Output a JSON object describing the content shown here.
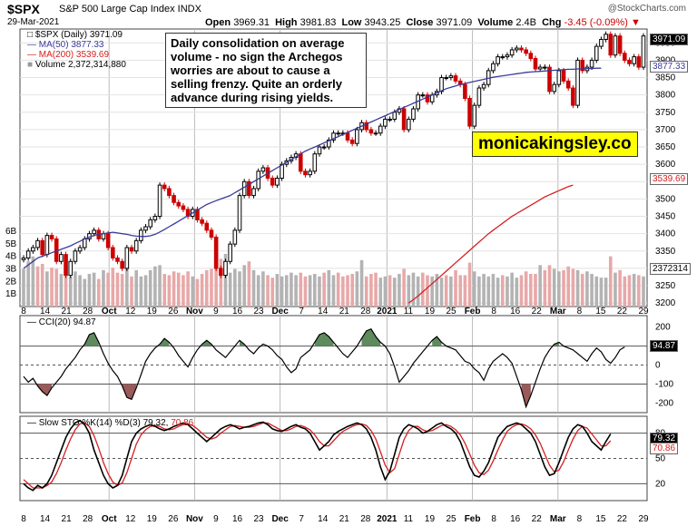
{
  "header": {
    "symbol": "$SPX",
    "name": "S&P 500 Large Cap Index INDX",
    "date": "29-Mar-2021",
    "open_label": "Open",
    "open": "3969.31",
    "high_label": "High",
    "high": "3981.83",
    "low_label": "Low",
    "low": "3943.25",
    "close_label": "Close",
    "close": "3971.09",
    "volume_label": "Volume",
    "volume": "2.4B",
    "chg_label": "Chg",
    "chg": "-3.45 (-0.09%)",
    "source": "@StockCharts.com"
  },
  "legend": {
    "price": "$SPX (Daily) 3971.09",
    "ma50": "MA(50) 3877.33",
    "ma200": "MA(200) 3539.69",
    "volume": "Volume 2,372,314,880",
    "cci": "CCI(20) 94.87",
    "sto_a": "Slow STO %K(14) %D(3) 79.32,",
    "sto_b": "70.86"
  },
  "annotation": "Daily consolidation on average volume - no sign the Archegos worries are about to cause a selling frenzy. Quite an orderly advance during rising yields.",
  "brand": "monicakingsley.co",
  "tags": {
    "price": "3971.09",
    "ma50": "3877.33",
    "ma200": "3539.69",
    "vol": "2372314",
    "cci": "94.87",
    "k": "79.32",
    "d": "70.86"
  },
  "colors": {
    "up": "#000000",
    "down": "#cc0000",
    "ma50": "#3a3a9a",
    "ma200": "#d42020",
    "vol_up": "#b3b3b3",
    "vol_down": "#e8a8a8",
    "osc_fill": "#5e8a5e",
    "osc_fill_low": "#9a5a5a"
  },
  "chart_data": [
    {
      "type": "candlestick",
      "x_ticks": [
        "8",
        "14",
        "21",
        "28",
        "Oct",
        "12",
        "19",
        "26",
        "Nov",
        "9",
        "16",
        "23",
        "Dec",
        "7",
        "14",
        "21",
        "28",
        "2021",
        "11",
        "19",
        "25",
        "Feb",
        "8",
        "16",
        "22",
        "Mar",
        "8",
        "15",
        "22",
        "29"
      ],
      "y_ticks": [
        3200,
        3250,
        3300,
        3350,
        3400,
        3450,
        3500,
        3550,
        3600,
        3650,
        3700,
        3750,
        3800,
        3850,
        3900,
        3950
      ],
      "ylim": [
        3190,
        3990
      ],
      "close": [
        3330,
        3350,
        3360,
        3380,
        3340,
        3395,
        3385,
        3320,
        3340,
        3280,
        3320,
        3350,
        3360,
        3385,
        3400,
        3410,
        3385,
        3400,
        3360,
        3330,
        3320,
        3300,
        3360,
        3350,
        3380,
        3410,
        3420,
        3440,
        3450,
        3540,
        3530,
        3510,
        3490,
        3480,
        3470,
        3450,
        3470,
        3440,
        3430,
        3410,
        3390,
        3300,
        3280,
        3320,
        3370,
        3410,
        3510,
        3550,
        3510,
        3530,
        3580,
        3590,
        3560,
        3540,
        3560,
        3600,
        3610,
        3620,
        3630,
        3580,
        3570,
        3580,
        3630,
        3650,
        3650,
        3670,
        3690,
        3690,
        3690,
        3670,
        3660,
        3700,
        3720,
        3700,
        3690,
        3690,
        3710,
        3730,
        3730,
        3750,
        3760,
        3700,
        3730,
        3760,
        3800,
        3800,
        3780,
        3800,
        3810,
        3850,
        3850,
        3855,
        3840,
        3830,
        3790,
        3710,
        3770,
        3820,
        3830,
        3870,
        3890,
        3910,
        3910,
        3915,
        3930,
        3935,
        3930,
        3920,
        3905,
        3875,
        3880,
        3880,
        3810,
        3830,
        3870,
        3840,
        3820,
        3770,
        3900,
        3870,
        3880,
        3900,
        3940,
        3960,
        3975,
        3915,
        3970,
        3920,
        3900,
        3890,
        3910,
        3880,
        3970
      ],
      "ma50": [
        3300,
        3310,
        3320,
        3330,
        3335,
        3340,
        3345,
        3350,
        3355,
        3360,
        3365,
        3372,
        3378,
        3385,
        3390,
        3395,
        3398,
        3400,
        3402,
        3404,
        3402,
        3400,
        3398,
        3395,
        3393,
        3392,
        3392,
        3394,
        3398,
        3405,
        3412,
        3420,
        3428,
        3436,
        3444,
        3452,
        3460,
        3468,
        3476,
        3484,
        3490,
        3495,
        3500,
        3505,
        3510,
        3518,
        3526,
        3534,
        3542,
        3550,
        3558,
        3566,
        3574,
        3582,
        3590,
        3598,
        3606,
        3614,
        3622,
        3630,
        3638,
        3644,
        3650,
        3656,
        3662,
        3668,
        3674,
        3680,
        3686,
        3692,
        3698,
        3704,
        3710,
        3716,
        3722,
        3728,
        3734,
        3740,
        3746,
        3752,
        3758,
        3764,
        3770,
        3776,
        3782,
        3788,
        3794,
        3800,
        3806,
        3812,
        3818,
        3822,
        3826,
        3830,
        3833,
        3836,
        3839,
        3842,
        3845,
        3848,
        3851,
        3853,
        3855,
        3857,
        3859,
        3861,
        3863,
        3865,
        3866,
        3867,
        3868,
        3869,
        3870,
        3871,
        3872,
        3873,
        3874,
        3874,
        3875,
        3875,
        3876,
        3876,
        3877,
        3877
      ],
      "ma200_start_index": 82,
      "ma200": [
        3200,
        3210,
        3220,
        3232,
        3244,
        3256,
        3268,
        3280,
        3292,
        3304,
        3316,
        3328,
        3340,
        3352,
        3364,
        3376,
        3388,
        3400,
        3410,
        3420,
        3430,
        3440,
        3450,
        3458,
        3466,
        3474,
        3482,
        3490,
        3498,
        3506,
        3512,
        3518,
        3524,
        3530,
        3536,
        3540
      ]
    },
    {
      "type": "bar",
      "name": "Volume",
      "y_ticks_labels": [
        "1B",
        "2B",
        "3B",
        "4B",
        "5B",
        "6B"
      ],
      "ylim": [
        0,
        6
      ],
      "values": [
        3.0,
        3.6,
        4.0,
        3.2,
        3.4,
        2.8,
        3.1,
        3.0,
        2.6,
        3.8,
        2.4,
        2.8,
        2.5,
        2.2,
        2.6,
        2.7,
        2.2,
        2.9,
        2.7,
        3.1,
        2.7,
        2.6,
        3.0,
        2.4,
        2.9,
        2.4,
        2.5,
        2.9,
        3.2,
        3.3,
        2.6,
        2.5,
        2.8,
        2.7,
        2.5,
        2.8,
        2.4,
        2.2,
        2.6,
        2.9,
        3.0,
        3.5,
        3.8,
        4.2,
        2.7,
        3.0,
        2.8,
        3.3,
        3.6,
        2.9,
        2.5,
        2.8,
        2.5,
        2.3,
        2.6,
        2.4,
        2.5,
        2.7,
        2.5,
        2.7,
        2.4,
        2.5,
        2.6,
        2.4,
        2.7,
        2.9,
        2.5,
        2.7,
        2.4,
        2.5,
        2.6,
        2.8,
        3.7,
        2.4,
        2.6,
        2.7,
        2.3,
        2.4,
        2.5,
        2.3,
        2.6,
        3.0,
        2.5,
        2.7,
        2.4,
        2.7,
        2.5,
        2.4,
        2.6,
        2.3,
        2.5,
        2.4,
        2.9,
        2.5,
        2.5,
        3.5,
        2.8,
        2.4,
        2.6,
        2.4,
        2.6,
        2.3,
        2.5,
        2.4,
        2.7,
        2.3,
        2.5,
        2.8,
        2.6,
        2.6,
        3.3,
        2.9,
        3.3,
        3.0,
        2.8,
        2.9,
        3.2,
        3.0,
        2.9,
        2.6,
        2.8,
        2.6,
        2.4,
        2.3,
        2.3,
        4.0,
        2.7,
        2.9,
        2.4,
        2.5,
        2.6,
        2.5,
        2.4
      ],
      "colors_up": [
        true,
        true,
        true,
        false,
        false,
        true,
        false,
        false,
        true,
        false,
        true,
        true,
        true,
        true,
        true,
        true,
        false,
        true,
        false,
        false,
        false,
        false,
        true,
        false,
        true,
        true,
        true,
        true,
        true,
        true,
        false,
        false,
        false,
        false,
        false,
        false,
        true,
        false,
        false,
        false,
        false,
        false,
        false,
        true,
        true,
        true,
        true,
        true,
        false,
        true,
        true,
        true,
        false,
        false,
        true,
        true,
        true,
        true,
        true,
        false,
        false,
        true,
        true,
        true,
        false,
        true,
        true,
        false,
        false,
        false,
        false,
        true,
        true,
        false,
        false,
        false,
        true,
        true,
        false,
        true,
        true,
        false,
        true,
        true,
        true,
        false,
        false,
        true,
        true,
        true,
        false,
        true,
        false,
        false,
        false,
        false,
        true,
        true,
        true,
        true,
        true,
        true,
        false,
        true,
        true,
        true,
        false,
        false,
        false,
        false,
        true,
        false,
        false,
        true,
        true,
        false,
        false,
        false,
        true,
        false,
        true,
        true,
        true,
        true,
        true,
        false,
        true,
        false,
        false,
        false,
        true,
        false,
        true
      ]
    },
    {
      "type": "line",
      "name": "CCI(20)",
      "y_ticks": [
        200,
        100,
        0,
        -100,
        -200
      ],
      "ylim": [
        -250,
        260
      ],
      "values": [
        -60,
        -90,
        -70,
        -110,
        -140,
        -160,
        -120,
        -90,
        -60,
        -20,
        10,
        40,
        80,
        110,
        160,
        170,
        120,
        60,
        10,
        -30,
        -60,
        -110,
        -170,
        -180,
        -120,
        -50,
        20,
        60,
        90,
        110,
        140,
        120,
        90,
        50,
        20,
        -10,
        40,
        80,
        110,
        130,
        110,
        80,
        60,
        40,
        70,
        100,
        130,
        110,
        80,
        60,
        90,
        110,
        100,
        80,
        50,
        30,
        -10,
        -40,
        -20,
        40,
        60,
        80,
        120,
        160,
        170,
        150,
        120,
        90,
        60,
        40,
        70,
        100,
        140,
        180,
        190,
        150,
        120,
        100,
        60,
        -10,
        -90,
        -60,
        -30,
        10,
        40,
        70,
        100,
        130,
        150,
        120,
        100,
        90,
        80,
        50,
        20,
        10,
        -20,
        -40,
        -80,
        -20,
        20,
        40,
        60,
        40,
        10,
        -60,
        -130,
        -220,
        -160,
        -90,
        -20,
        40,
        80,
        110,
        120,
        100,
        90,
        80,
        60,
        40,
        20,
        60,
        90,
        70,
        30,
        10,
        40,
        80,
        95
      ],
      "reference_lines": [
        100,
        0,
        -100
      ]
    },
    {
      "type": "line",
      "name": "Slow STO",
      "y_ticks": [
        80,
        50,
        20
      ],
      "ylim": [
        0,
        100
      ],
      "series": [
        {
          "name": "%K(14)",
          "values": [
            20,
            15,
            12,
            18,
            15,
            20,
            30,
            45,
            60,
            75,
            85,
            92,
            95,
            90,
            80,
            60,
            45,
            30,
            20,
            15,
            18,
            30,
            50,
            70,
            80,
            85,
            88,
            90,
            88,
            85,
            83,
            85,
            88,
            90,
            92,
            90,
            85,
            80,
            75,
            70,
            75,
            80,
            85,
            88,
            90,
            88,
            85,
            87,
            88,
            90,
            92,
            93,
            90,
            85,
            83,
            82,
            85,
            88,
            90,
            87,
            85,
            80,
            70,
            60,
            65,
            70,
            78,
            82,
            85,
            88,
            90,
            92,
            90,
            85,
            75,
            60,
            40,
            25,
            35,
            55,
            75,
            85,
            90,
            88,
            85,
            80,
            82,
            86,
            90,
            92,
            88,
            85,
            80,
            70,
            55,
            40,
            30,
            28,
            35,
            45,
            60,
            75,
            82,
            88,
            90,
            92,
            90,
            85,
            80,
            70,
            55,
            40,
            30,
            32,
            45,
            60,
            75,
            85,
            90,
            88,
            80,
            70,
            65,
            60,
            70,
            79
          ]
        },
        {
          "name": "%D(3)",
          "values": [
            25,
            20,
            15,
            15,
            15,
            18,
            22,
            32,
            45,
            60,
            73,
            84,
            91,
            92,
            88,
            77,
            62,
            45,
            32,
            22,
            18,
            21,
            33,
            50,
            67,
            78,
            84,
            88,
            89,
            88,
            85,
            84,
            85,
            88,
            90,
            91,
            89,
            85,
            80,
            75,
            73,
            75,
            80,
            84,
            88,
            89,
            88,
            87,
            87,
            88,
            90,
            92,
            92,
            89,
            86,
            83,
            83,
            85,
            88,
            89,
            87,
            84,
            78,
            70,
            65,
            65,
            71,
            77,
            82,
            85,
            88,
            90,
            91,
            89,
            83,
            73,
            58,
            42,
            33,
            38,
            55,
            72,
            83,
            88,
            88,
            84,
            82,
            83,
            86,
            89,
            90,
            88,
            84,
            78,
            68,
            55,
            42,
            33,
            31,
            36,
            47,
            60,
            72,
            82,
            87,
            90,
            91,
            89,
            85,
            78,
            68,
            55,
            42,
            34,
            36,
            46,
            60,
            73,
            83,
            88,
            86,
            79,
            72,
            65,
            65,
            71
          ]
        }
      ],
      "reference_lines": [
        80,
        50,
        20
      ]
    }
  ]
}
